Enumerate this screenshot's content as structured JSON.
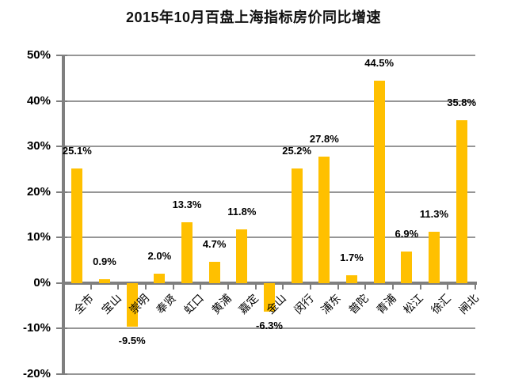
{
  "page": {
    "title": "2015年10月百盘上海指标房价同比增速"
  },
  "chart_data": {
    "type": "bar",
    "title": "2015年10月百盘上海指标房价同比增速",
    "categories": [
      "全市",
      "宝山",
      "崇明",
      "奉贤",
      "虹口",
      "黄浦",
      "嘉定",
      "金山",
      "闵行",
      "浦东",
      "普陀",
      "青浦",
      "松江",
      "徐汇",
      "闸北"
    ],
    "values": [
      25.1,
      0.9,
      -9.5,
      2.0,
      13.3,
      4.7,
      11.8,
      -6.3,
      25.2,
      27.8,
      1.7,
      44.5,
      6.9,
      11.3,
      35.8
    ],
    "data_labels": [
      "25.1%",
      "0.9%",
      "-9.5%",
      "2.0%",
      "13.3%",
      "4.7%",
      "11.8%",
      "-6.3%",
      "25.2%",
      "27.8%",
      "1.7%",
      "44.5%",
      "6.9%",
      "11.3%",
      "35.8%"
    ],
    "xlabel": "",
    "ylabel": "",
    "ylim": [
      -20,
      50
    ],
    "ytick_step": 10,
    "ytick_labels": [
      "50%",
      "40%",
      "30%",
      "20%",
      "10%",
      "0%",
      "-10%",
      "-20%"
    ],
    "grid": true,
    "legend": "none",
    "bar_color": "#FFC000",
    "gridline_color": "#969696",
    "axis_color": "#7F7F7F",
    "text_color": "#000000"
  }
}
